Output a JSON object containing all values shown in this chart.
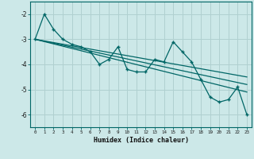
{
  "xlabel": "Humidex (Indice chaleur)",
  "bg_color": "#cce8e8",
  "grid_color": "#b0d0d0",
  "line_color": "#006666",
  "xlim": [
    -0.5,
    23.5
  ],
  "ylim": [
    -6.5,
    -1.5
  ],
  "xticks": [
    0,
    1,
    2,
    3,
    4,
    5,
    6,
    7,
    8,
    9,
    10,
    11,
    12,
    13,
    14,
    15,
    16,
    17,
    18,
    19,
    20,
    21,
    22,
    23
  ],
  "yticks": [
    -6,
    -5,
    -4,
    -3,
    -2
  ],
  "data_x": [
    0,
    1,
    2,
    3,
    4,
    5,
    6,
    7,
    8,
    9,
    10,
    11,
    12,
    13,
    14,
    15,
    16,
    17,
    18,
    19,
    20,
    21,
    22,
    23
  ],
  "data_y": [
    -3.0,
    -2.0,
    -2.6,
    -3.0,
    -3.2,
    -3.3,
    -3.5,
    -4.0,
    -3.8,
    -3.3,
    -4.2,
    -4.3,
    -4.3,
    -3.8,
    -3.9,
    -3.1,
    -3.5,
    -3.9,
    -4.6,
    -5.3,
    -5.5,
    -5.4,
    -4.9,
    -6.0
  ],
  "regression_lines": [
    [
      -3.0,
      -4.5
    ],
    [
      -3.0,
      -4.8
    ],
    [
      -3.0,
      -5.1
    ]
  ]
}
